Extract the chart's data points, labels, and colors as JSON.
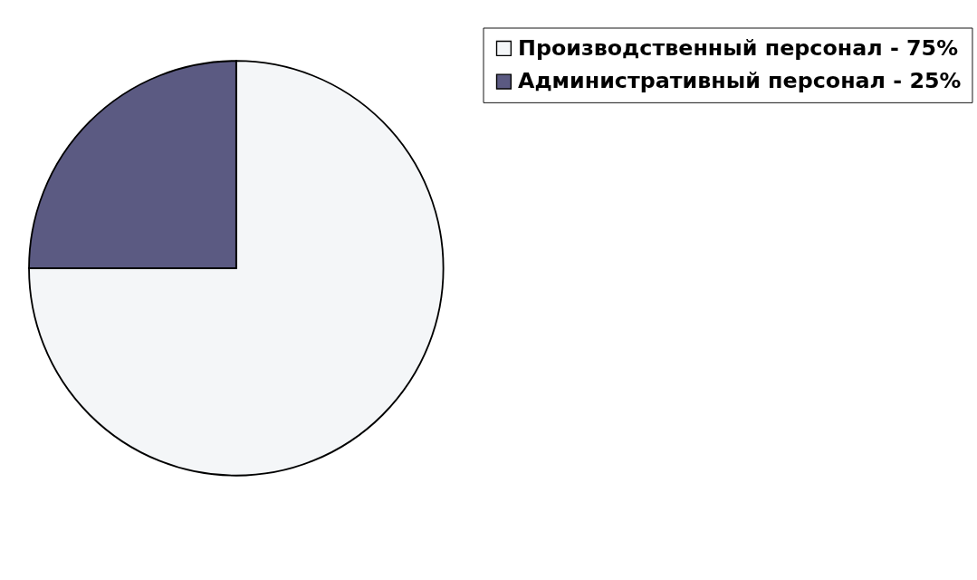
{
  "chart_data": {
    "type": "pie",
    "categories": [
      "Производственный персонал - 75%",
      "Административный персонал - 25%"
    ],
    "values": [
      75,
      25
    ],
    "colors": [
      "#f4f6f8",
      "#5b5a82"
    ],
    "legend": "right"
  }
}
